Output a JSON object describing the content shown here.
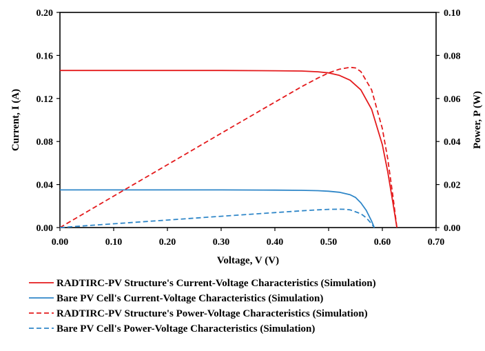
{
  "chart_data": {
    "type": "line",
    "xlabel": "Voltage, V (V)",
    "ylabel": "Current, I (A)",
    "y2label": "Power, P (W)",
    "xlim": [
      0,
      0.7
    ],
    "ylim": [
      0,
      0.2
    ],
    "y2lim": [
      0,
      0.1
    ],
    "x_ticks": [
      "0.00",
      "0.10",
      "0.20",
      "0.30",
      "0.40",
      "0.50",
      "0.60",
      "0.70"
    ],
    "y_ticks": [
      "0.00",
      "0.04",
      "0.08",
      "0.12",
      "0.16",
      "0.20"
    ],
    "y2_ticks": [
      "0.00",
      "0.02",
      "0.04",
      "0.06",
      "0.08",
      "0.10"
    ],
    "grid": false,
    "legend_position": "bottom",
    "series": [
      {
        "name": "RADTIRC-PV Structure's Current-Voltage Characteristics (Simulation)",
        "color": "#e41a1c",
        "dash": "solid",
        "axis": "left",
        "x": [
          0,
          0.1,
          0.2,
          0.3,
          0.4,
          0.45,
          0.48,
          0.5,
          0.52,
          0.54,
          0.56,
          0.58,
          0.6,
          0.61,
          0.62,
          0.627
        ],
        "y": [
          0.146,
          0.146,
          0.146,
          0.146,
          0.1458,
          0.1455,
          0.1448,
          0.1438,
          0.1415,
          0.137,
          0.128,
          0.11,
          0.077,
          0.052,
          0.022,
          0.0
        ]
      },
      {
        "name": "Bare PV Cell's Current-Voltage Characteristics (Simulation)",
        "color": "#2e86c8",
        "dash": "solid",
        "axis": "left",
        "x": [
          0,
          0.1,
          0.2,
          0.3,
          0.4,
          0.45,
          0.48,
          0.5,
          0.52,
          0.54,
          0.55,
          0.56,
          0.57,
          0.58,
          0.585
        ],
        "y": [
          0.035,
          0.035,
          0.035,
          0.035,
          0.0348,
          0.0346,
          0.0343,
          0.0338,
          0.0328,
          0.0305,
          0.028,
          0.023,
          0.016,
          0.006,
          0.0
        ]
      },
      {
        "name": "RADTIRC-PV Structure's Power-Voltage Characteristics (Simulation)",
        "color": "#e41a1c",
        "dash": "dashed",
        "axis": "right",
        "x": [
          0,
          0.1,
          0.2,
          0.3,
          0.4,
          0.45,
          0.48,
          0.5,
          0.52,
          0.54,
          0.55,
          0.56,
          0.58,
          0.6,
          0.61,
          0.62,
          0.627
        ],
        "y": [
          0.0,
          0.0146,
          0.0292,
          0.0438,
          0.0583,
          0.0655,
          0.0695,
          0.0719,
          0.0736,
          0.0745,
          0.0742,
          0.0725,
          0.064,
          0.046,
          0.032,
          0.014,
          0.0
        ]
      },
      {
        "name": "Bare PV Cell's Power-Voltage Characteristics (Simulation)",
        "color": "#2e86c8",
        "dash": "dashed",
        "axis": "right",
        "x": [
          0,
          0.1,
          0.2,
          0.3,
          0.4,
          0.45,
          0.48,
          0.5,
          0.52,
          0.53,
          0.54,
          0.56,
          0.57,
          0.58,
          0.585
        ],
        "y": [
          0.0,
          0.00175,
          0.0035,
          0.00525,
          0.00696,
          0.00779,
          0.00823,
          0.00845,
          0.00853,
          0.00848,
          0.00824,
          0.00644,
          0.00456,
          0.00174,
          0.0
        ]
      }
    ]
  }
}
